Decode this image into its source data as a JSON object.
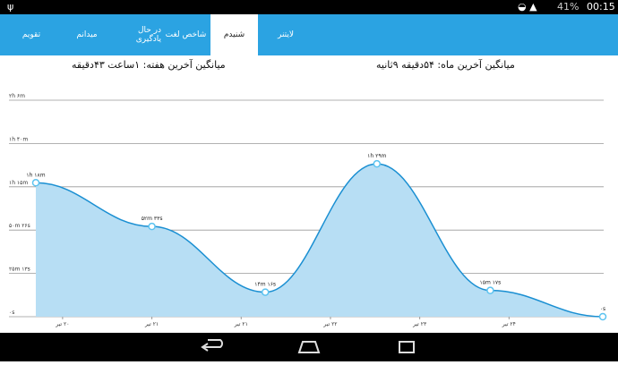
{
  "status": {
    "battery": "41%",
    "time": "00:15"
  },
  "tabs": [
    "تقویم",
    "میدانم",
    "در حال یادگیری",
    "شاخص لغت",
    "شنیدم",
    "لایتنر"
  ],
  "averages": {
    "week": "میانگین آخرین هفته: ۱ساعت ۴۳دقیقه",
    "month": "میانگین آخرین ماه: ۵۴دقیقه ۹ثانیه"
  },
  "chart_data": {
    "type": "area",
    "x": [
      -0.3,
      1.0,
      2.27,
      3.52,
      4.79,
      6.05
    ],
    "values": [
      4680,
      3153,
      856,
      5340,
      917,
      0
    ],
    "value_labels": [
      "۱h ۱۸m",
      "۵۲m ۳۳s",
      "۱۴m ۱۶s",
      "۱h ۲۹m",
      "۱۵m ۱۷s",
      "۰s"
    ],
    "color": "#1a8fd2",
    "fill": "#b7def4",
    "xlim": [
      -0.34,
      6.06
    ],
    "xticks": [
      {
        "value": 0,
        "label": "۲۰ تیر"
      },
      {
        "value": 1,
        "label": "۲۱ تیر"
      },
      {
        "value": 2,
        "label": "۲۱ تیر"
      },
      {
        "value": 3,
        "label": "۲۲ تیر"
      },
      {
        "value": 4,
        "label": "۲۳ تیر"
      },
      {
        "value": 5,
        "label": "۲۴ تیر"
      }
    ],
    "ylim": [
      0,
      7565
    ],
    "yticks": [
      {
        "value": 0,
        "label": "۰s"
      },
      {
        "value": 1513,
        "label": "۲۵m ۱۳s"
      },
      {
        "value": 3026,
        "label": "۵۰m ۲۶s"
      },
      {
        "value": 4539,
        "label": "۱h ۱۵m"
      },
      {
        "value": 6052,
        "label": "۱h ۴۰m"
      },
      {
        "value": 7565,
        "label": "۲h ۶m"
      }
    ],
    "grid": true
  }
}
